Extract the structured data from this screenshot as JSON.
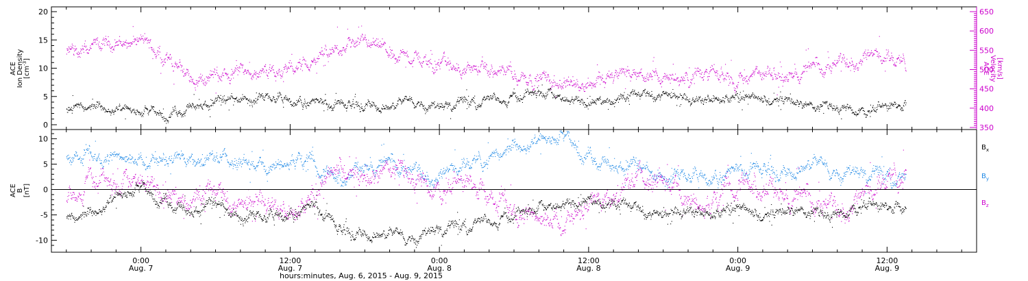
{
  "chart_data": [
    {
      "type": "scatter",
      "panel": "top",
      "ylabel_left": [
        "ACE",
        "Ion Density",
        "[cm",
        "-3",
        "]"
      ],
      "ylabel_right": [
        "ACE",
        "Velocity",
        "[km/s]"
      ],
      "ylim_left": [
        0,
        20
      ],
      "yticks_left": [
        "0",
        "5",
        "10",
        "15",
        "20"
      ],
      "ylim_right": [
        350,
        650
      ],
      "yticks_right": [
        "350",
        "400",
        "450",
        "500",
        "550",
        "600",
        "650"
      ],
      "series": [
        {
          "color": "#000000",
          "axis": "left",
          "x_hours": [
            -6,
            -4,
            -2,
            0,
            2,
            4,
            6,
            8,
            10,
            12,
            14,
            16,
            18,
            20,
            22,
            24,
            26,
            28,
            30,
            32,
            34,
            36,
            38,
            40,
            42,
            44,
            46,
            48,
            50,
            52,
            54,
            56,
            58,
            60,
            61.5
          ],
          "values": [
            3,
            3,
            2.5,
            2,
            2,
            3,
            3.5,
            5,
            4.5,
            4,
            4,
            3.5,
            3.5,
            3,
            4.5,
            3,
            4,
            4.5,
            5,
            5.5,
            4.5,
            4,
            4.5,
            5,
            5.5,
            4.5,
            4.5,
            4.5,
            4.5,
            4.5,
            3,
            3,
            2.5,
            3,
            3
          ]
        },
        {
          "color": "#cc00cc",
          "axis": "right",
          "x_hours": [
            -6,
            -4,
            -2,
            0,
            2,
            4,
            6,
            8,
            10,
            12,
            14,
            16,
            18,
            20,
            22,
            24,
            26,
            28,
            30,
            32,
            34,
            36,
            38,
            40,
            42,
            44,
            46,
            48,
            50,
            52,
            54,
            56,
            58,
            60,
            61.5
          ],
          "values": [
            540,
            550,
            570,
            575,
            530,
            475,
            480,
            500,
            495,
            500,
            520,
            560,
            555,
            540,
            530,
            515,
            505,
            495,
            485,
            480,
            470,
            470,
            475,
            480,
            470,
            480,
            490,
            480,
            480,
            480,
            500,
            520,
            540,
            535,
            510
          ]
        }
      ]
    },
    {
      "type": "scatter",
      "panel": "bottom",
      "ylabel_left": [
        "ACE",
        "B",
        "[nT]"
      ],
      "ylim": [
        -12,
        12
      ],
      "yticks": [
        "-10",
        "-5",
        "0",
        "5",
        "10"
      ],
      "zero_line": true,
      "series": [
        {
          "name": "B",
          "sub": "x",
          "color": "#000000",
          "x_hours": [
            -6,
            -4,
            -2,
            0,
            2,
            4,
            6,
            8,
            10,
            12,
            14,
            16,
            18,
            20,
            22,
            24,
            26,
            28,
            30,
            32,
            34,
            36,
            38,
            40,
            42,
            44,
            46,
            48,
            50,
            52,
            54,
            56,
            58,
            60,
            61.5
          ],
          "values": [
            -6,
            -5,
            -2,
            0,
            -2,
            -5,
            -3,
            -5,
            -6,
            -5,
            -3,
            -8,
            -9,
            -9,
            -9,
            -8,
            -7,
            -6,
            -5,
            -4,
            -3,
            -2,
            -3,
            -4,
            -5,
            -4,
            -5,
            -4,
            -5,
            -4,
            -5,
            -5,
            -3,
            -4,
            -4
          ]
        },
        {
          "name": "B",
          "sub": "y",
          "color": "#1e88e5",
          "x_hours": [
            -6,
            -4,
            -2,
            0,
            2,
            4,
            6,
            8,
            10,
            12,
            14,
            16,
            18,
            20,
            22,
            24,
            26,
            28,
            30,
            32,
            34,
            36,
            38,
            40,
            42,
            44,
            46,
            48,
            50,
            52,
            54,
            56,
            58,
            60,
            61.5
          ],
          "values": [
            6,
            7,
            7,
            6,
            6,
            6,
            6,
            5,
            4,
            6,
            5,
            2,
            4,
            5,
            4,
            3,
            5,
            6,
            8,
            9,
            10,
            7,
            4,
            4,
            3,
            2,
            2,
            4,
            4,
            3,
            5,
            4,
            3,
            3,
            2
          ]
        },
        {
          "name": "B",
          "sub": "z",
          "color": "#cc00cc",
          "x_hours": [
            -6,
            -4,
            -2,
            0,
            2,
            4,
            6,
            8,
            10,
            12,
            14,
            16,
            18,
            20,
            22,
            24,
            26,
            28,
            30,
            32,
            34,
            36,
            38,
            40,
            42,
            44,
            46,
            48,
            50,
            52,
            54,
            56,
            58,
            60,
            61.5
          ],
          "values": [
            -2,
            3,
            0,
            2,
            -1,
            -2,
            -1,
            -3,
            -2,
            -5,
            -2,
            5,
            2,
            4,
            2,
            0,
            1,
            -2,
            -3,
            -5,
            -6,
            -3,
            -1,
            2,
            1,
            -2,
            -3,
            2,
            0,
            -2,
            -2,
            -3,
            -1,
            2,
            3
          ]
        }
      ]
    }
  ],
  "x_axis": {
    "range_hours": [
      -7.2,
      67.2
    ],
    "ticks": [
      {
        "h": 0,
        "time": "0:00",
        "date": "Aug. 7"
      },
      {
        "h": 12,
        "time": "12:00",
        "date": "Aug. 7"
      },
      {
        "h": 24,
        "time": "0:00",
        "date": "Aug. 8"
      },
      {
        "h": 36,
        "time": "12:00",
        "date": "Aug. 8"
      },
      {
        "h": 48,
        "time": "0:00",
        "date": "Aug. 9"
      },
      {
        "h": 60,
        "time": "12:00",
        "date": "Aug. 9"
      }
    ],
    "xlabel": "hours:minutes, Aug.  6, 2015 - Aug.  9, 2015"
  },
  "legend": [
    {
      "label": "B",
      "sub": "x",
      "color": "#000000"
    },
    {
      "label": "B",
      "sub": "y",
      "color": "#1e88e5"
    },
    {
      "label": "B",
      "sub": "z",
      "color": "#cc00cc"
    }
  ]
}
